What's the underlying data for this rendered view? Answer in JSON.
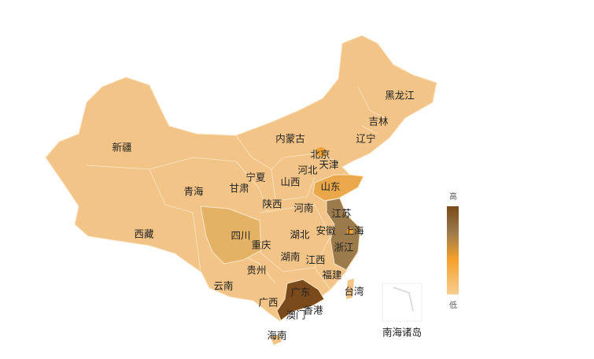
{
  "map": {
    "colors": {
      "base": "#f3c487",
      "sichuan": "#e3b265",
      "shandong": "#eba84a",
      "jiangsu_zhejiang": "#9b7a4b",
      "guangdong": "#7b4a1c",
      "beijing": "#f0a030",
      "shanghai": "#f0a030",
      "border": "#fbe6c8",
      "nanhai_box": "#eeeeee"
    },
    "provinces": [
      {
        "name": "黑龙江",
        "level": "low"
      },
      {
        "name": "吉林",
        "level": "low"
      },
      {
        "name": "辽宁",
        "level": "low"
      },
      {
        "name": "内蒙古",
        "level": "low"
      },
      {
        "name": "北京",
        "level": "medium"
      },
      {
        "name": "天津",
        "level": "low"
      },
      {
        "name": "河北",
        "level": "low"
      },
      {
        "name": "山西",
        "level": "low"
      },
      {
        "name": "山东",
        "level": "medium"
      },
      {
        "name": "新疆",
        "level": "low"
      },
      {
        "name": "宁夏",
        "level": "low"
      },
      {
        "name": "甘肃",
        "level": "low"
      },
      {
        "name": "青海",
        "level": "low"
      },
      {
        "name": "陕西",
        "level": "low"
      },
      {
        "name": "河南",
        "level": "low"
      },
      {
        "name": "江苏",
        "level": "high"
      },
      {
        "name": "安徽",
        "level": "low"
      },
      {
        "name": "上海",
        "level": "medium"
      },
      {
        "name": "西藏",
        "level": "low"
      },
      {
        "name": "四川",
        "level": "low-medium"
      },
      {
        "name": "湖北",
        "level": "low"
      },
      {
        "name": "重庆",
        "level": "low"
      },
      {
        "name": "浙江",
        "level": "high"
      },
      {
        "name": "湖南",
        "level": "low"
      },
      {
        "name": "江西",
        "level": "low"
      },
      {
        "name": "贵州",
        "level": "low"
      },
      {
        "name": "福建",
        "level": "low"
      },
      {
        "name": "云南",
        "level": "low"
      },
      {
        "name": "台湾",
        "level": "low"
      },
      {
        "name": "广东",
        "level": "highest"
      },
      {
        "name": "广西",
        "level": "low"
      },
      {
        "name": "澳门",
        "level": "low"
      },
      {
        "name": "香港",
        "level": "low"
      },
      {
        "name": "海南",
        "level": "low"
      },
      {
        "name": "南海诸岛",
        "level": "none"
      }
    ]
  },
  "legend": {
    "high_label": "高",
    "low_label": "低",
    "gradient": [
      "#7a4a1a",
      "#9c7b4c",
      "#f5a02a",
      "#f9cd90"
    ]
  }
}
